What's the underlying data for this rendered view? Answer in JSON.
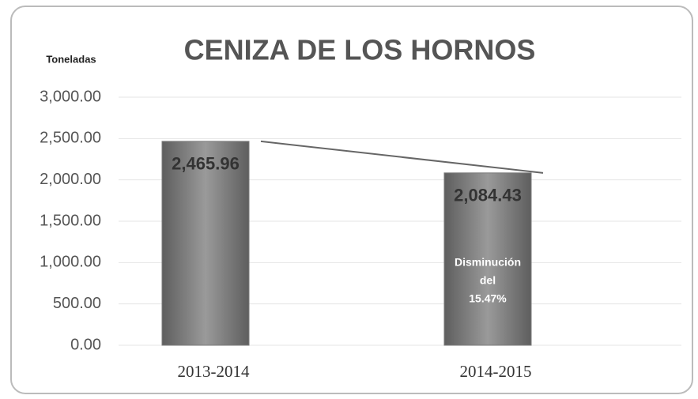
{
  "chart_data": {
    "type": "bar",
    "title": "CENIZA DE LOS HORNOS",
    "y_label": "Toneladas",
    "categories": [
      "2013-2014",
      "2014-2015"
    ],
    "values": [
      2465.96,
      2084.43
    ],
    "value_labels": [
      "2,465.96",
      "2,084.43"
    ],
    "color": "#7a7a7a",
    "annotation": [
      "Disminución",
      "del",
      "15.47%"
    ],
    "ylim": [
      0,
      3000
    ],
    "yticks": [
      {
        "value": 0,
        "label": "0.00"
      },
      {
        "value": 500,
        "label": "500.00"
      },
      {
        "value": 1000,
        "label": "1,000.00"
      },
      {
        "value": 1500,
        "label": "1,500.00"
      },
      {
        "value": 2000,
        "label": "2,000.00"
      },
      {
        "value": 2500,
        "label": "2,500.00"
      },
      {
        "value": 3000,
        "label": "3,000.00"
      }
    ],
    "grid": true
  }
}
